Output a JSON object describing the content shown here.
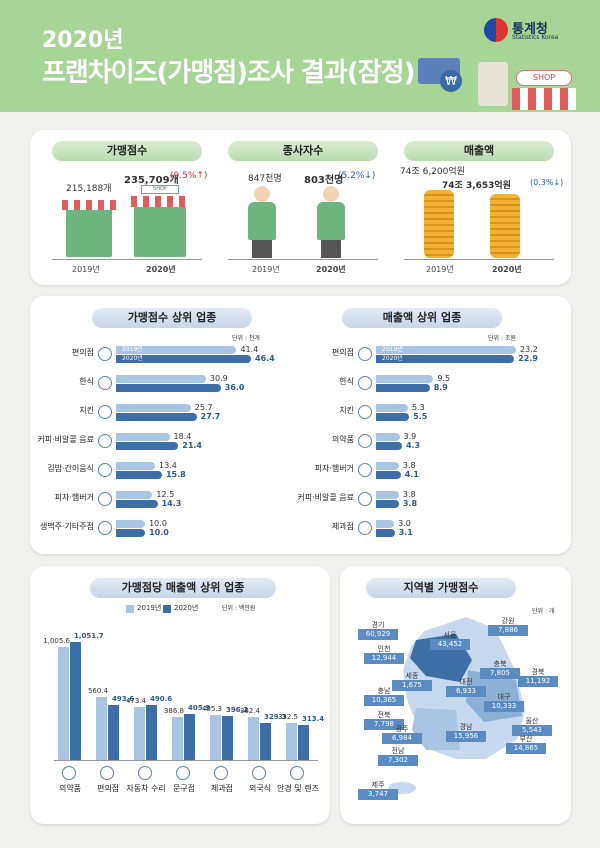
{
  "header": {
    "year": "2020년",
    "title": "프랜차이즈(가맹점)조사 결과(잠정)",
    "logo_ko": "통계청",
    "logo_en": "Statistics Korea",
    "shop_sign": "SHOP"
  },
  "summary": {
    "stores": {
      "label": "가맹점수",
      "v2019": "215,188개",
      "v2020": "235,709개",
      "change": "(9.5%↑)",
      "y1": "2019년",
      "y2": "2020년",
      "sign": "SHOP"
    },
    "workers": {
      "label": "종사자수",
      "v2019": "847천명",
      "v2020": "803천명",
      "change": "(5.2%↓)",
      "y1": "2019년",
      "y2": "2020년"
    },
    "sales": {
      "label": "매출액",
      "v2019": "74조 6,200억원",
      "v2020": "74조 3,653억원",
      "change": "(0.3%↓)",
      "y1": "2019년",
      "y2": "2020년"
    }
  },
  "top_stores": {
    "title": "가맹점수 상위 업종",
    "unit": "단위 : 천개",
    "legend_2019": "2019년",
    "legend_2020": "2020년",
    "rows": [
      {
        "cat": "편의점",
        "v2019": 41.4,
        "v2020": 46.4,
        "icon": "convenience-store-icon"
      },
      {
        "cat": "한식",
        "v2019": 30.9,
        "v2020": 36.0,
        "icon": "korean-food-icon"
      },
      {
        "cat": "치킨",
        "v2019": 25.7,
        "v2020": 27.7,
        "icon": "chicken-icon"
      },
      {
        "cat": "커피·비알콜 음료",
        "v2019": 18.4,
        "v2020": 21.4,
        "icon": "coffee-icon"
      },
      {
        "cat": "김밥·간이음식",
        "v2019": 13.4,
        "v2020": 15.8,
        "icon": "gimbap-icon"
      },
      {
        "cat": "피자·햄버거",
        "v2019": 12.5,
        "v2020": 14.3,
        "icon": "burger-icon"
      },
      {
        "cat": "생맥주·기타주점",
        "v2019": 10.0,
        "v2020": 10.0,
        "icon": "beer-icon"
      }
    ]
  },
  "top_sales": {
    "title": "매출액 상위 업종",
    "unit": "단위 : 조원",
    "legend_2019": "2019년",
    "legend_2020": "2020년",
    "rows": [
      {
        "cat": "편의점",
        "v2019": 23.2,
        "v2020": 22.9,
        "icon": "convenience-store-icon"
      },
      {
        "cat": "한식",
        "v2019": 9.5,
        "v2020": 8.9,
        "icon": "korean-food-icon"
      },
      {
        "cat": "치킨",
        "v2019": 5.3,
        "v2020": 5.5,
        "icon": "chicken-icon"
      },
      {
        "cat": "의약품",
        "v2019": 3.9,
        "v2020": 4.3,
        "icon": "medicine-icon"
      },
      {
        "cat": "피자·햄버거",
        "v2019": 3.8,
        "v2020": 4.1,
        "icon": "burger-icon"
      },
      {
        "cat": "커피·비알콜 음료",
        "v2019": 3.8,
        "v2020": 3.8,
        "icon": "coffee-icon"
      },
      {
        "cat": "제과점",
        "v2019": 3.0,
        "v2020": 3.1,
        "icon": "bakery-icon"
      }
    ]
  },
  "per_store": {
    "title": "가맹점당 매출액 상위 업종",
    "legend_2019": "2019년",
    "legend_2020": "2020년",
    "unit": "단위 : 백만원",
    "rows": [
      {
        "cat": "의약품",
        "v2019": 1005.6,
        "v2020": 1051.7,
        "l2019": "1,005.6",
        "l2020": "1,051.7",
        "icon": "medicine-icon"
      },
      {
        "cat": "편의점",
        "v2019": 560.4,
        "v2020": 493.6,
        "l2019": "560.4",
        "l2020": "493.6",
        "icon": "convenience-store-icon"
      },
      {
        "cat": "자동차 수리",
        "v2019": 473.4,
        "v2020": 490.6,
        "l2019": "473.4",
        "l2020": "490.6",
        "icon": "car-icon"
      },
      {
        "cat": "문구점",
        "v2019": 386.8,
        "v2020": 405.9,
        "l2019": "386.8",
        "l2020": "405.9",
        "icon": "stationery-icon"
      },
      {
        "cat": "제과점",
        "v2019": 405.3,
        "v2020": 396.2,
        "l2019": "405.3",
        "l2020": "396.2",
        "icon": "bakery-icon"
      },
      {
        "cat": "외국식",
        "v2019": 382.4,
        "v2020": 329.3,
        "l2019": "382.4",
        "l2020": "329.3",
        "icon": "utensils-icon"
      },
      {
        "cat": "안경 및 렌즈",
        "v2019": 332.5,
        "v2020": 313.4,
        "l2019": "332.5",
        "l2020": "313.4",
        "icon": "glasses-icon"
      }
    ]
  },
  "regions": {
    "title": "지역별 가맹점수",
    "unit": "단위 : 개",
    "items": [
      {
        "name": "경기",
        "value": "60,929"
      },
      {
        "name": "강원",
        "value": "7,886"
      },
      {
        "name": "인천",
        "value": "12,944"
      },
      {
        "name": "서울",
        "value": "43,452"
      },
      {
        "name": "충북",
        "value": "7,805"
      },
      {
        "name": "경북",
        "value": "11,192"
      },
      {
        "name": "세종",
        "value": "1,675"
      },
      {
        "name": "대전",
        "value": "6,933"
      },
      {
        "name": "충남",
        "value": "10,365"
      },
      {
        "name": "대구",
        "value": "10,333"
      },
      {
        "name": "전북",
        "value": "7,798"
      },
      {
        "name": "울산",
        "value": "5,543"
      },
      {
        "name": "광주",
        "value": "6,984"
      },
      {
        "name": "경남",
        "value": "15,956"
      },
      {
        "name": "부산",
        "value": "14,865"
      },
      {
        "name": "전남",
        "value": "7,302"
      },
      {
        "name": "제주",
        "value": "3,747"
      }
    ]
  },
  "colors": {
    "header": "#a6d595",
    "bar2019": "#a8c6e4",
    "bar2020": "#3d6ea5",
    "up": "#d33",
    "down": "#1f5fa8"
  }
}
